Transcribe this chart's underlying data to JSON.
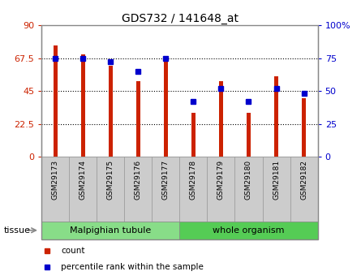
{
  "title": "GDS732 / 141648_at",
  "samples": [
    "GSM29173",
    "GSM29174",
    "GSM29175",
    "GSM29176",
    "GSM29177",
    "GSM29178",
    "GSM29179",
    "GSM29180",
    "GSM29181",
    "GSM29182"
  ],
  "counts": [
    76,
    70,
    62,
    52,
    65,
    30,
    52,
    30,
    55,
    40
  ],
  "percentiles": [
    75,
    75,
    72,
    65,
    75,
    42,
    52,
    42,
    52,
    48
  ],
  "left_ylim": [
    0,
    90
  ],
  "right_ylim": [
    0,
    100
  ],
  "left_yticks": [
    0,
    22.5,
    45,
    67.5,
    90
  ],
  "right_yticks": [
    0,
    25,
    50,
    75,
    100
  ],
  "left_yticklabels": [
    "0",
    "22.5",
    "45",
    "67.5",
    "90"
  ],
  "right_yticklabels": [
    "0",
    "25",
    "50",
    "75",
    "100%"
  ],
  "bar_color": "#cc2200",
  "dot_color": "#0000cc",
  "tissue_label": "tissue",
  "legend_count_label": "count",
  "legend_percentile_label": "percentile rank within the sample",
  "malpighian_color": "#88dd88",
  "whole_color": "#55cc55",
  "tick_bg": "#cccccc",
  "bar_width": 0.15
}
